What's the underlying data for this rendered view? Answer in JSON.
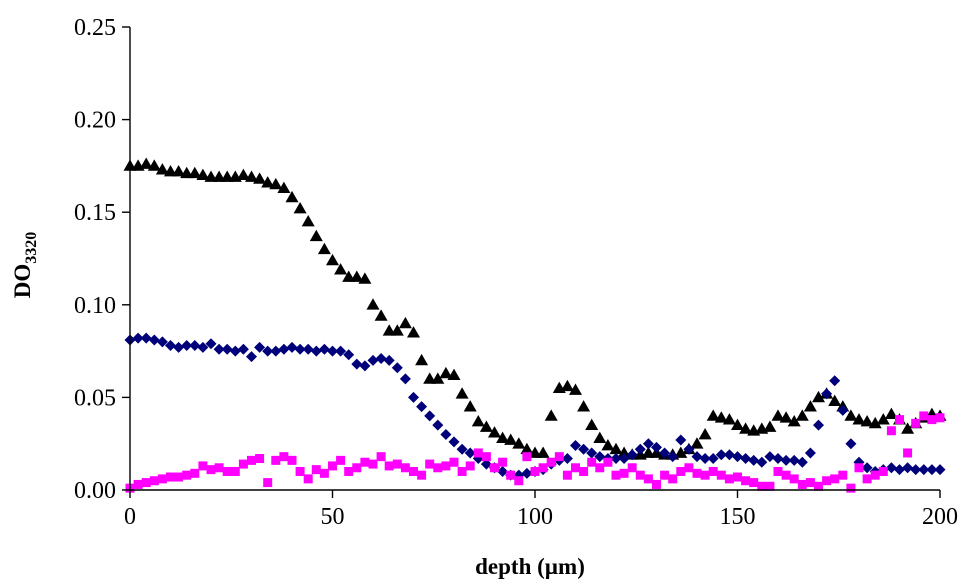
{
  "chart_data": {
    "type": "scatter",
    "xlabel": "depth (µm)",
    "ylabel_main": "DO",
    "ylabel_sub": "3320",
    "xlim": [
      0,
      200
    ],
    "ylim": [
      0,
      0.25
    ],
    "x_ticks": [
      "0",
      "50",
      "100",
      "150",
      "200"
    ],
    "y_ticks": [
      "0.00",
      "0.05",
      "0.10",
      "0.15",
      "0.20",
      "0.25"
    ],
    "grid": false,
    "legend": "none",
    "series": [
      {
        "marker": "triangle",
        "color": "#000000",
        "points": [
          [
            0,
            0.175
          ],
          [
            2,
            0.175
          ],
          [
            4,
            0.176
          ],
          [
            6,
            0.175
          ],
          [
            8,
            0.173
          ],
          [
            10,
            0.172
          ],
          [
            12,
            0.172
          ],
          [
            14,
            0.171
          ],
          [
            16,
            0.171
          ],
          [
            18,
            0.17
          ],
          [
            20,
            0.169
          ],
          [
            22,
            0.169
          ],
          [
            24,
            0.169
          ],
          [
            26,
            0.169
          ],
          [
            28,
            0.17
          ],
          [
            30,
            0.169
          ],
          [
            32,
            0.168
          ],
          [
            34,
            0.166
          ],
          [
            36,
            0.165
          ],
          [
            38,
            0.163
          ],
          [
            40,
            0.158
          ],
          [
            42,
            0.152
          ],
          [
            44,
            0.145
          ],
          [
            46,
            0.137
          ],
          [
            48,
            0.13
          ],
          [
            50,
            0.124
          ],
          [
            52,
            0.119
          ],
          [
            54,
            0.115
          ],
          [
            56,
            0.115
          ],
          [
            58,
            0.114
          ],
          [
            60,
            0.1
          ],
          [
            62,
            0.094
          ],
          [
            64,
            0.086
          ],
          [
            66,
            0.086
          ],
          [
            68,
            0.09
          ],
          [
            70,
            0.085
          ],
          [
            72,
            0.07
          ],
          [
            74,
            0.06
          ],
          [
            76,
            0.06
          ],
          [
            78,
            0.063
          ],
          [
            80,
            0.062
          ],
          [
            82,
            0.052
          ],
          [
            84,
            0.045
          ],
          [
            86,
            0.037
          ],
          [
            88,
            0.034
          ],
          [
            90,
            0.031
          ],
          [
            92,
            0.028
          ],
          [
            94,
            0.027
          ],
          [
            96,
            0.025
          ],
          [
            98,
            0.022
          ],
          [
            100,
            0.02
          ],
          [
            102,
            0.02
          ],
          [
            104,
            0.04
          ],
          [
            106,
            0.055
          ],
          [
            108,
            0.056
          ],
          [
            110,
            0.054
          ],
          [
            112,
            0.045
          ],
          [
            114,
            0.035
          ],
          [
            116,
            0.028
          ],
          [
            118,
            0.024
          ],
          [
            120,
            0.022
          ],
          [
            122,
            0.02
          ],
          [
            124,
            0.019
          ],
          [
            126,
            0.019
          ],
          [
            128,
            0.02
          ],
          [
            130,
            0.02
          ],
          [
            132,
            0.019
          ],
          [
            134,
            0.019
          ],
          [
            136,
            0.02
          ],
          [
            138,
            0.022
          ],
          [
            140,
            0.025
          ],
          [
            142,
            0.03
          ],
          [
            144,
            0.04
          ],
          [
            146,
            0.039
          ],
          [
            148,
            0.038
          ],
          [
            150,
            0.035
          ],
          [
            152,
            0.033
          ],
          [
            154,
            0.032
          ],
          [
            156,
            0.033
          ],
          [
            158,
            0.034
          ],
          [
            160,
            0.04
          ],
          [
            162,
            0.039
          ],
          [
            164,
            0.037
          ],
          [
            166,
            0.04
          ],
          [
            168,
            0.045
          ],
          [
            170,
            0.05
          ],
          [
            172,
            0.052
          ],
          [
            174,
            0.048
          ],
          [
            176,
            0.045
          ],
          [
            178,
            0.04
          ],
          [
            180,
            0.038
          ],
          [
            182,
            0.037
          ],
          [
            184,
            0.036
          ],
          [
            186,
            0.038
          ],
          [
            188,
            0.041
          ],
          [
            190,
            0.038
          ],
          [
            192,
            0.033
          ],
          [
            194,
            0.036
          ],
          [
            196,
            0.039
          ],
          [
            198,
            0.041
          ],
          [
            200,
            0.04
          ]
        ]
      },
      {
        "marker": "diamond",
        "color": "#00007a",
        "points": [
          [
            0,
            0.081
          ],
          [
            2,
            0.082
          ],
          [
            4,
            0.082
          ],
          [
            6,
            0.081
          ],
          [
            8,
            0.08
          ],
          [
            10,
            0.078
          ],
          [
            12,
            0.077
          ],
          [
            14,
            0.078
          ],
          [
            16,
            0.078
          ],
          [
            18,
            0.077
          ],
          [
            20,
            0.079
          ],
          [
            22,
            0.076
          ],
          [
            24,
            0.076
          ],
          [
            26,
            0.075
          ],
          [
            28,
            0.076
          ],
          [
            30,
            0.072
          ],
          [
            32,
            0.077
          ],
          [
            34,
            0.075
          ],
          [
            36,
            0.075
          ],
          [
            38,
            0.076
          ],
          [
            40,
            0.077
          ],
          [
            42,
            0.076
          ],
          [
            44,
            0.076
          ],
          [
            46,
            0.075
          ],
          [
            48,
            0.076
          ],
          [
            50,
            0.075
          ],
          [
            52,
            0.075
          ],
          [
            54,
            0.073
          ],
          [
            56,
            0.068
          ],
          [
            58,
            0.067
          ],
          [
            60,
            0.07
          ],
          [
            62,
            0.071
          ],
          [
            64,
            0.07
          ],
          [
            66,
            0.066
          ],
          [
            68,
            0.06
          ],
          [
            70,
            0.05
          ],
          [
            72,
            0.045
          ],
          [
            74,
            0.04
          ],
          [
            76,
            0.035
          ],
          [
            78,
            0.03
          ],
          [
            80,
            0.026
          ],
          [
            82,
            0.022
          ],
          [
            84,
            0.02
          ],
          [
            86,
            0.017
          ],
          [
            88,
            0.014
          ],
          [
            90,
            0.012
          ],
          [
            92,
            0.01
          ],
          [
            94,
            0.008
          ],
          [
            96,
            0.008
          ],
          [
            98,
            0.009
          ],
          [
            100,
            0.01
          ],
          [
            102,
            0.011
          ],
          [
            104,
            0.014
          ],
          [
            106,
            0.016
          ],
          [
            108,
            0.017
          ],
          [
            110,
            0.024
          ],
          [
            112,
            0.022
          ],
          [
            114,
            0.02
          ],
          [
            116,
            0.018
          ],
          [
            118,
            0.017
          ],
          [
            120,
            0.017
          ],
          [
            122,
            0.017
          ],
          [
            124,
            0.019
          ],
          [
            126,
            0.022
          ],
          [
            128,
            0.025
          ],
          [
            130,
            0.023
          ],
          [
            132,
            0.02
          ],
          [
            134,
            0.018
          ],
          [
            136,
            0.027
          ],
          [
            138,
            0.022
          ],
          [
            140,
            0.018
          ],
          [
            142,
            0.017
          ],
          [
            144,
            0.017
          ],
          [
            146,
            0.019
          ],
          [
            148,
            0.019
          ],
          [
            150,
            0.018
          ],
          [
            152,
            0.017
          ],
          [
            154,
            0.016
          ],
          [
            156,
            0.015
          ],
          [
            158,
            0.018
          ],
          [
            160,
            0.017
          ],
          [
            162,
            0.016
          ],
          [
            164,
            0.016
          ],
          [
            166,
            0.015
          ],
          [
            168,
            0.02
          ],
          [
            170,
            0.035
          ],
          [
            172,
            0.052
          ],
          [
            174,
            0.059
          ],
          [
            176,
            0.043
          ],
          [
            178,
            0.025
          ],
          [
            180,
            0.015
          ],
          [
            182,
            0.012
          ],
          [
            184,
            0.01
          ],
          [
            186,
            0.011
          ],
          [
            188,
            0.012
          ],
          [
            190,
            0.011
          ],
          [
            192,
            0.012
          ],
          [
            194,
            0.011
          ],
          [
            196,
            0.011
          ],
          [
            198,
            0.011
          ],
          [
            200,
            0.011
          ]
        ]
      },
      {
        "marker": "square",
        "color": "#ff00ff",
        "points": [
          [
            0,
            0.001
          ],
          [
            2,
            0.003
          ],
          [
            4,
            0.004
          ],
          [
            6,
            0.005
          ],
          [
            8,
            0.006
          ],
          [
            10,
            0.007
          ],
          [
            12,
            0.007
          ],
          [
            14,
            0.008
          ],
          [
            16,
            0.009
          ],
          [
            18,
            0.013
          ],
          [
            20,
            0.011
          ],
          [
            22,
            0.012
          ],
          [
            24,
            0.01
          ],
          [
            26,
            0.01
          ],
          [
            28,
            0.014
          ],
          [
            30,
            0.016
          ],
          [
            32,
            0.017
          ],
          [
            34,
            0.004
          ],
          [
            36,
            0.016
          ],
          [
            38,
            0.018
          ],
          [
            40,
            0.016
          ],
          [
            42,
            0.01
          ],
          [
            44,
            0.006
          ],
          [
            46,
            0.011
          ],
          [
            48,
            0.009
          ],
          [
            50,
            0.013
          ],
          [
            52,
            0.016
          ],
          [
            54,
            0.01
          ],
          [
            56,
            0.012
          ],
          [
            58,
            0.015
          ],
          [
            60,
            0.014
          ],
          [
            62,
            0.018
          ],
          [
            64,
            0.013
          ],
          [
            66,
            0.014
          ],
          [
            68,
            0.012
          ],
          [
            70,
            0.01
          ],
          [
            72,
            0.008
          ],
          [
            74,
            0.014
          ],
          [
            76,
            0.012
          ],
          [
            78,
            0.013
          ],
          [
            80,
            0.015
          ],
          [
            82,
            0.01
          ],
          [
            84,
            0.013
          ],
          [
            86,
            0.02
          ],
          [
            88,
            0.018
          ],
          [
            90,
            0.012
          ],
          [
            92,
            0.015
          ],
          [
            94,
            0.008
          ],
          [
            96,
            0.005
          ],
          [
            98,
            0.018
          ],
          [
            100,
            0.01
          ],
          [
            102,
            0.012
          ],
          [
            104,
            0.015
          ],
          [
            106,
            0.018
          ],
          [
            108,
            0.008
          ],
          [
            110,
            0.012
          ],
          [
            112,
            0.01
          ],
          [
            114,
            0.015
          ],
          [
            116,
            0.012
          ],
          [
            118,
            0.015
          ],
          [
            120,
            0.008
          ],
          [
            122,
            0.009
          ],
          [
            124,
            0.012
          ],
          [
            126,
            0.008
          ],
          [
            128,
            0.006
          ],
          [
            130,
            0.003
          ],
          [
            132,
            0.008
          ],
          [
            134,
            0.006
          ],
          [
            136,
            0.01
          ],
          [
            138,
            0.012
          ],
          [
            140,
            0.009
          ],
          [
            142,
            0.008
          ],
          [
            144,
            0.01
          ],
          [
            146,
            0.008
          ],
          [
            148,
            0.006
          ],
          [
            150,
            0.007
          ],
          [
            152,
            0.005
          ],
          [
            154,
            0.004
          ],
          [
            156,
            0.002
          ],
          [
            158,
            0.002
          ],
          [
            160,
            0.01
          ],
          [
            162,
            0.008
          ],
          [
            164,
            0.006
          ],
          [
            166,
            0.003
          ],
          [
            168,
            0.004
          ],
          [
            170,
            0.002
          ],
          [
            172,
            0.005
          ],
          [
            174,
            0.006
          ],
          [
            176,
            0.008
          ],
          [
            178,
            0.001
          ],
          [
            180,
            0.012
          ],
          [
            182,
            0.006
          ],
          [
            184,
            0.008
          ],
          [
            186,
            0.01
          ],
          [
            188,
            0.032
          ],
          [
            190,
            0.038
          ],
          [
            192,
            0.02
          ],
          [
            194,
            0.036
          ],
          [
            196,
            0.04
          ],
          [
            198,
            0.038
          ],
          [
            200,
            0.039
          ]
        ]
      }
    ]
  }
}
